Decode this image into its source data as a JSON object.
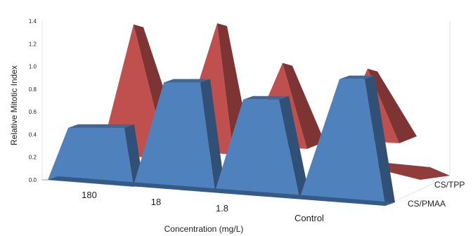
{
  "chart_data": {
    "type": "bar",
    "style": "3d-pyramid-area",
    "categories": [
      "180",
      "18",
      "1.8",
      "Control"
    ],
    "series": [
      {
        "name": "CS/PMAA",
        "values": [
          0.52,
          0.92,
          0.77,
          0.95
        ],
        "color": "#4f81bd"
      },
      {
        "name": "CS/TPP",
        "values": [
          1.42,
          1.43,
          1.08,
          1.03
        ],
        "color": "#c0504d"
      }
    ],
    "ylim": [
      0.0,
      1.4
    ],
    "y_ticks": [
      "0.0",
      "0.2",
      "0.4",
      "0.6",
      "0.8",
      "1.0",
      "1.2",
      "1.4"
    ],
    "xlabel": "Concentration (mg/L)",
    "ylabel": "Relative Mitotic Index",
    "grid": false
  }
}
